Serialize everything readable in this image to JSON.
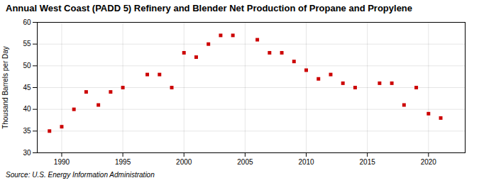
{
  "chart_data": {
    "type": "scatter",
    "title": "Annual West Coast (PADD 5) Refinery and Blender Net Production of Propane and Propylene",
    "ylabel": "Thousand Barrels per Day",
    "source": "Source: U.S. Energy Information Administration",
    "x": [
      1989,
      1990,
      1991,
      1992,
      1993,
      1994,
      1995,
      1997,
      1998,
      1999,
      2000,
      2001,
      2002,
      2003,
      2004,
      2006,
      2007,
      2008,
      2009,
      2010,
      2011,
      2012,
      2013,
      2014,
      2016,
      2017,
      2018,
      2019,
      2020,
      2021
    ],
    "values": [
      35,
      36,
      40,
      44,
      41,
      44,
      45,
      48,
      48,
      45,
      53,
      52,
      55,
      57,
      57,
      56,
      53,
      53,
      51,
      49,
      47,
      48,
      46,
      45,
      46,
      46,
      41,
      45,
      39,
      38
    ],
    "xlim": [
      1988,
      2023
    ],
    "ylim": [
      30,
      60
    ],
    "xticks": [
      1990,
      1995,
      2000,
      2005,
      2010,
      2015,
      2020
    ],
    "yticks": [
      30,
      35,
      40,
      45,
      50,
      55,
      60
    ],
    "color": "#CC0000",
    "marker": "square",
    "grid": true
  }
}
